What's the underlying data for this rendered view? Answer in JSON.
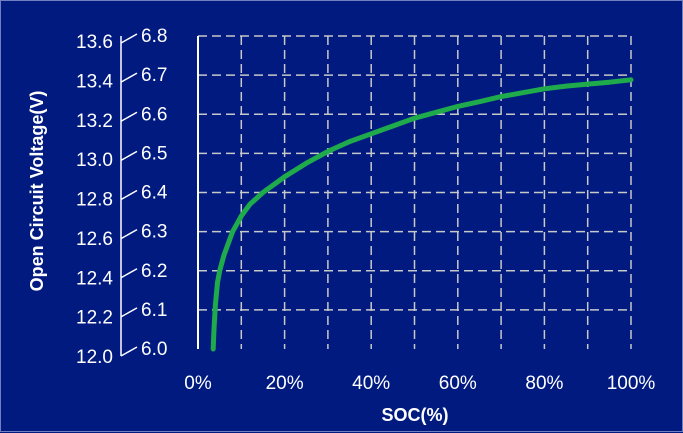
{
  "chart_data": {
    "type": "line",
    "title": "",
    "xlabel": "SOC(%)",
    "ylabel": "Open Circuit Voltage(V)",
    "xlim": [
      0,
      100
    ],
    "ylim_12v": [
      12.0,
      13.6
    ],
    "ylim_6v": [
      6.0,
      6.8
    ],
    "x_ticks": [
      "0%",
      "20%",
      "40%",
      "60%",
      "80%",
      "100%"
    ],
    "y_ticks_12v": [
      "12.0",
      "12.2",
      "12.4",
      "12.6",
      "12.8",
      "13.0",
      "13.2",
      "13.4",
      "13.6"
    ],
    "y_ticks_6v": [
      "6.0",
      "6.1",
      "6.2",
      "6.3",
      "6.4",
      "6.5",
      "6.6",
      "6.7",
      "6.8"
    ],
    "grid": true,
    "series": [
      {
        "x": [
          3.5,
          3.7,
          4,
          4.5,
          5,
          6,
          7,
          8,
          9,
          10,
          12,
          15,
          20,
          25,
          30,
          35,
          40,
          45,
          50,
          55,
          60,
          65,
          70,
          75,
          80,
          85,
          90,
          95,
          100
        ],
        "y": [
          6.0,
          6.05,
          6.11,
          6.17,
          6.2,
          6.24,
          6.27,
          6.3,
          6.32,
          6.34,
          6.37,
          6.4,
          6.44,
          6.475,
          6.505,
          6.53,
          6.55,
          6.57,
          6.59,
          6.605,
          6.62,
          6.632,
          6.645,
          6.655,
          6.665,
          6.672,
          6.677,
          6.682,
          6.688
        ]
      }
    ],
    "colors": {
      "background": "#001a80",
      "grid": "#c8c8c8",
      "axis": "#ffffff",
      "line": "#1faa4c",
      "text": "#ffffff"
    }
  }
}
